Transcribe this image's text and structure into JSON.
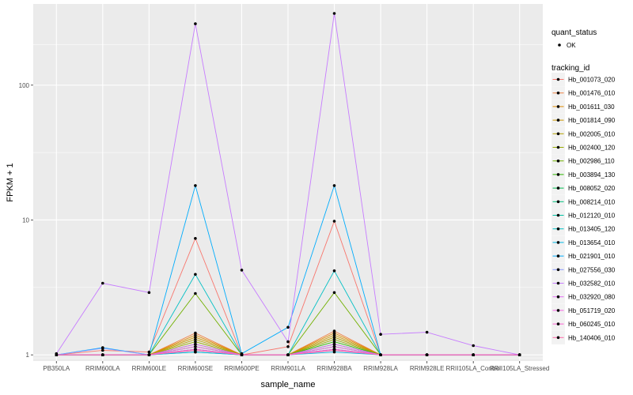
{
  "chart_data": {
    "type": "line",
    "xlabel": "sample_name",
    "ylabel": "FPKM + 1",
    "y_scale": "log10",
    "ylim": [
      0.9,
      400
    ],
    "y_ticks": [
      1,
      10,
      100
    ],
    "y_tick_labels": [
      "1",
      "10",
      "100"
    ],
    "grid": true,
    "legend_position": "right",
    "categories": [
      "PB350LA",
      "RRIM600LA",
      "RRIM600LE",
      "RRIM600SE",
      "RRIM600PE",
      "RRIM901LA",
      "RRIM928BA",
      "RRIM928LA",
      "RRIM928LE",
      "RRII105LA_Control",
      "RRII105LA_Stressed"
    ],
    "quant_status": {
      "title": "quant_status",
      "entries": [
        "OK"
      ]
    },
    "tracking_legend_title": "tracking_id",
    "series": [
      {
        "name": "Hb_001073_020",
        "color": "#F8766D",
        "values": [
          1,
          1.08,
          1.05,
          7.3,
          1,
          1.15,
          9.8,
          1,
          1,
          1,
          1
        ]
      },
      {
        "name": "Hb_001476_010",
        "color": "#EE8043",
        "values": [
          1,
          1,
          1,
          1.45,
          1,
          1,
          1.5,
          1,
          1,
          1,
          1
        ]
      },
      {
        "name": "Hb_001611_030",
        "color": "#DF8B00",
        "values": [
          1,
          1,
          1,
          1.4,
          1,
          1,
          1.45,
          1,
          1,
          1,
          1
        ]
      },
      {
        "name": "Hb_001814_090",
        "color": "#CC9600",
        "values": [
          1,
          1,
          1,
          1.35,
          1,
          1,
          1.4,
          1,
          1,
          1,
          1
        ]
      },
      {
        "name": "Hb_002005_010",
        "color": "#B49F00",
        "values": [
          1,
          1,
          1,
          1.3,
          1,
          1,
          1.35,
          1,
          1,
          1,
          1
        ]
      },
      {
        "name": "Hb_002400_120",
        "color": "#97A900",
        "values": [
          1,
          1,
          1,
          1.25,
          1,
          1,
          1.3,
          1,
          1,
          1,
          1
        ]
      },
      {
        "name": "Hb_002986_110",
        "color": "#71B000",
        "values": [
          1,
          1,
          1,
          2.85,
          1,
          1,
          2.9,
          1,
          1,
          1,
          1
        ]
      },
      {
        "name": "Hb_003894_130",
        "color": "#2EB600",
        "values": [
          1,
          1,
          1,
          1.2,
          1,
          1,
          1.25,
          1,
          1,
          1,
          1
        ]
      },
      {
        "name": "Hb_008052_020",
        "color": "#00BB4E",
        "values": [
          1,
          1,
          1,
          1.15,
          1,
          1,
          1.2,
          1,
          1,
          1,
          1
        ]
      },
      {
        "name": "Hb_008214_010",
        "color": "#00BF7D",
        "values": [
          1,
          1,
          1,
          1.1,
          1,
          1,
          1.15,
          1,
          1,
          1,
          1
        ]
      },
      {
        "name": "Hb_012120_010",
        "color": "#00C1A3",
        "values": [
          1,
          1,
          1,
          1.05,
          1,
          1,
          1.1,
          1,
          1,
          1,
          1
        ]
      },
      {
        "name": "Hb_013405_120",
        "color": "#00BFC4",
        "values": [
          1,
          1,
          1,
          3.95,
          1,
          1,
          4.2,
          1,
          1,
          1,
          1
        ]
      },
      {
        "name": "Hb_013654_010",
        "color": "#00B8E5",
        "values": [
          1,
          1,
          1,
          1.05,
          1,
          1,
          1.05,
          1,
          1,
          1,
          1
        ]
      },
      {
        "name": "Hb_021901_010",
        "color": "#00ACFC",
        "values": [
          1,
          1.13,
          1,
          18,
          1.02,
          1.6,
          18,
          1,
          1,
          1,
          1
        ]
      },
      {
        "name": "Hb_027556_030",
        "color": "#8A9AFF",
        "values": [
          1,
          1.12,
          1,
          1.1,
          1,
          1,
          1.1,
          1,
          1,
          1,
          1
        ]
      },
      {
        "name": "Hb_032582_010",
        "color": "#C77CFF",
        "values": [
          1.02,
          3.4,
          2.9,
          285,
          4.25,
          1.25,
          340,
          1.42,
          1.47,
          1.17,
          1
        ]
      },
      {
        "name": "Hb_032920_080",
        "color": "#E46CF6",
        "values": [
          1,
          1,
          1,
          1.2,
          1,
          1,
          1.2,
          1,
          1,
          1,
          1
        ]
      },
      {
        "name": "Hb_051719_020",
        "color": "#F564E3",
        "values": [
          1,
          1,
          1,
          1.15,
          1,
          1,
          1.15,
          1,
          1,
          1,
          1
        ]
      },
      {
        "name": "Hb_060245_010",
        "color": "#FD61D1",
        "values": [
          1,
          1,
          1,
          1.1,
          1,
          1,
          1.1,
          1,
          1,
          1,
          1
        ]
      },
      {
        "name": "Hb_140406_010",
        "color": "#FF66A8",
        "values": [
          1,
          1,
          1,
          1.08,
          1,
          1,
          1.08,
          1,
          1,
          1,
          1
        ]
      }
    ]
  }
}
